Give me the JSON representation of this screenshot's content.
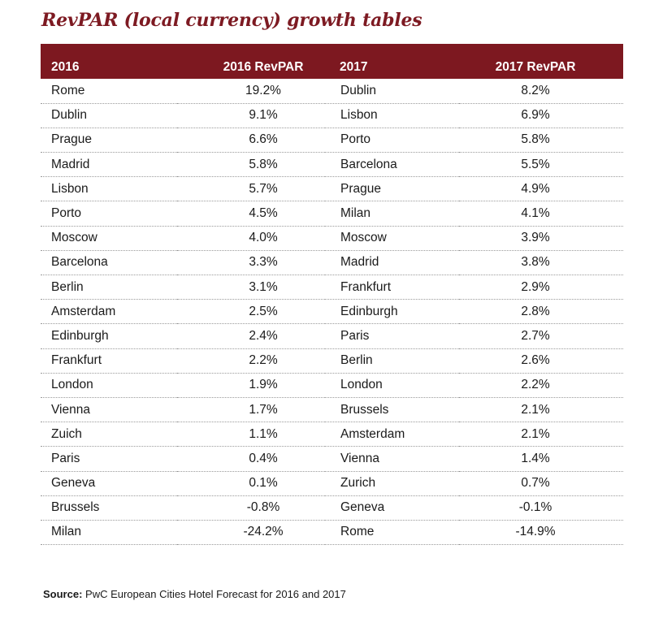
{
  "title": "RevPAR (local currency) growth tables",
  "colors": {
    "title": "#7d1a22",
    "header_bg": "#7d1820",
    "header_text": "#ffffff",
    "row_divider": "#9a9a9a"
  },
  "table": {
    "headers": [
      "2016",
      "2016 RevPAR",
      "2017",
      "2017 RevPAR"
    ],
    "rows": [
      [
        "Rome",
        "19.2%",
        "Dublin",
        "8.2%"
      ],
      [
        "Dublin",
        "9.1%",
        "Lisbon",
        "6.9%"
      ],
      [
        "Prague",
        "6.6%",
        "Porto",
        "5.8%"
      ],
      [
        "Madrid",
        "5.8%",
        "Barcelona",
        "5.5%"
      ],
      [
        "Lisbon",
        "5.7%",
        "Prague",
        "4.9%"
      ],
      [
        "Porto",
        "4.5%",
        "Milan",
        "4.1%"
      ],
      [
        "Moscow",
        "4.0%",
        "Moscow",
        "3.9%"
      ],
      [
        "Barcelona",
        "3.3%",
        "Madrid",
        "3.8%"
      ],
      [
        "Berlin",
        "3.1%",
        "Frankfurt",
        "2.9%"
      ],
      [
        "Amsterdam",
        "2.5%",
        "Edinburgh",
        "2.8%"
      ],
      [
        "Edinburgh",
        "2.4%",
        "Paris",
        "2.7%"
      ],
      [
        "Frankfurt",
        "2.2%",
        "Berlin",
        "2.6%"
      ],
      [
        "London",
        "1.9%",
        "London",
        "2.2%"
      ],
      [
        "Vienna",
        "1.7%",
        "Brussels",
        "2.1%"
      ],
      [
        "Zuich",
        "1.1%",
        "Amsterdam",
        "2.1%"
      ],
      [
        "Paris",
        "0.4%",
        "Vienna",
        "1.4%"
      ],
      [
        "Geneva",
        "0.1%",
        "Zurich",
        "0.7%"
      ],
      [
        "Brussels",
        "-0.8%",
        "Geneva",
        "-0.1%"
      ],
      [
        "Milan",
        "-24.2%",
        "Rome",
        "-14.9%"
      ]
    ]
  },
  "chart_data": {
    "type": "table",
    "title": "RevPAR (local currency) growth tables",
    "columns": [
      "2016",
      "2016 RevPAR",
      "2017",
      "2017 RevPAR"
    ],
    "series": [
      {
        "name": "2016 RevPAR",
        "categories": [
          "Rome",
          "Dublin",
          "Prague",
          "Madrid",
          "Lisbon",
          "Porto",
          "Moscow",
          "Barcelona",
          "Berlin",
          "Amsterdam",
          "Edinburgh",
          "Frankfurt",
          "London",
          "Vienna",
          "Zuich",
          "Paris",
          "Geneva",
          "Brussels",
          "Milan"
        ],
        "values": [
          19.2,
          9.1,
          6.6,
          5.8,
          5.7,
          4.5,
          4.0,
          3.3,
          3.1,
          2.5,
          2.4,
          2.2,
          1.9,
          1.7,
          1.1,
          0.4,
          0.1,
          -0.8,
          -24.2
        ],
        "unit": "%"
      },
      {
        "name": "2017 RevPAR",
        "categories": [
          "Dublin",
          "Lisbon",
          "Porto",
          "Barcelona",
          "Prague",
          "Milan",
          "Moscow",
          "Madrid",
          "Frankfurt",
          "Edinburgh",
          "Paris",
          "Berlin",
          "London",
          "Brussels",
          "Amsterdam",
          "Vienna",
          "Zurich",
          "Geneva",
          "Rome"
        ],
        "values": [
          8.2,
          6.9,
          5.8,
          5.5,
          4.9,
          4.1,
          3.9,
          3.8,
          2.9,
          2.8,
          2.7,
          2.6,
          2.2,
          2.1,
          2.1,
          1.4,
          0.7,
          -0.1,
          -14.9
        ],
        "unit": "%"
      }
    ]
  },
  "source": {
    "label": "Source:",
    "text": " PwC European Cities Hotel Forecast for 2016 and 2017"
  }
}
